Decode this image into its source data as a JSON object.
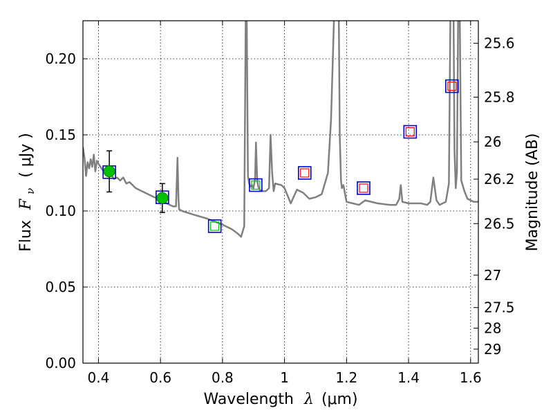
{
  "chart_data": {
    "type": "line",
    "xlabel_main": "Wavelength",
    "xlabel_symbol": "λ",
    "xlabel_unit": "(μm)",
    "ylabel_main": "Flux",
    "ylabel_symbol": "F",
    "ylabel_sub": "ν",
    "ylabel_unit": "( μJy )",
    "y2label": "Magnitude (AB)",
    "xlim": [
      0.35,
      1.625
    ],
    "ylim": [
      0.0,
      0.225
    ],
    "xticks": [
      0.4,
      0.6,
      0.8,
      1.0,
      1.2,
      1.4,
      1.6
    ],
    "xtick_labels": [
      "0.4",
      "0.6",
      "0.8",
      "1",
      "1.2",
      "1.4",
      "1.6"
    ],
    "yticks": [
      0.0,
      0.05,
      0.1,
      0.15,
      0.2
    ],
    "ytick_labels": [
      "0.00",
      "0.05",
      "0.10",
      "0.15",
      "0.20"
    ],
    "y2ticks": [
      {
        "label": "25.6",
        "flux": 0.2102
      },
      {
        "label": "25.8",
        "flux": 0.1748
      },
      {
        "label": "26",
        "flux": 0.1454
      },
      {
        "label": "26.2",
        "flux": 0.1209
      },
      {
        "label": "26.5",
        "flux": 0.0917
      },
      {
        "label": "27",
        "flux": 0.0578
      },
      {
        "label": "27.5",
        "flux": 0.0365
      },
      {
        "label": "28",
        "flux": 0.023
      },
      {
        "label": "29",
        "flux": 0.0092
      }
    ],
    "grid": true,
    "series": [
      {
        "color": "#808080",
        "x": [
          0.35,
          0.355,
          0.36,
          0.365,
          0.37,
          0.375,
          0.38,
          0.385,
          0.39,
          0.395,
          0.4,
          0.41,
          0.42,
          0.43,
          0.44,
          0.45,
          0.46,
          0.47,
          0.48,
          0.49,
          0.5,
          0.52,
          0.54,
          0.56,
          0.58,
          0.6,
          0.62,
          0.64,
          0.65,
          0.655,
          0.658,
          0.66,
          0.67,
          0.7,
          0.75,
          0.8,
          0.83,
          0.85,
          0.86,
          0.87,
          0.875,
          0.878,
          0.882,
          0.886,
          0.89,
          0.895,
          0.9,
          0.905,
          0.908,
          0.912,
          0.915,
          0.92,
          0.93,
          0.94,
          0.95,
          0.955,
          0.96,
          0.965,
          0.97,
          0.99,
          1.0,
          1.01,
          1.02,
          1.04,
          1.06,
          1.08,
          1.1,
          1.12,
          1.14,
          1.15,
          1.16,
          1.17,
          1.175,
          1.178,
          1.182,
          1.185,
          1.19,
          1.2,
          1.22,
          1.24,
          1.26,
          1.3,
          1.34,
          1.36,
          1.37,
          1.375,
          1.38,
          1.4,
          1.42,
          1.44,
          1.46,
          1.47,
          1.48,
          1.49,
          1.5,
          1.51,
          1.52,
          1.53,
          1.535,
          1.54,
          1.545,
          1.548,
          1.552,
          1.556,
          1.56,
          1.565,
          1.57,
          1.58,
          1.59,
          1.6,
          1.61,
          1.625
        ],
        "y": [
          0.142,
          0.135,
          0.123,
          0.132,
          0.128,
          0.134,
          0.129,
          0.137,
          0.126,
          0.133,
          0.131,
          0.128,
          0.125,
          0.123,
          0.124,
          0.121,
          0.122,
          0.12,
          0.122,
          0.118,
          0.119,
          0.115,
          0.113,
          0.111,
          0.109,
          0.108,
          0.105,
          0.103,
          0.103,
          0.135,
          0.108,
          0.101,
          0.1,
          0.098,
          0.095,
          0.091,
          0.088,
          0.085,
          0.083,
          0.09,
          0.23,
          0.23,
          0.123,
          0.118,
          0.116,
          0.117,
          0.115,
          0.121,
          0.145,
          0.12,
          0.116,
          0.114,
          0.113,
          0.113,
          0.115,
          0.15,
          0.125,
          0.113,
          0.118,
          0.117,
          0.115,
          0.11,
          0.105,
          0.114,
          0.112,
          0.108,
          0.109,
          0.111,
          0.125,
          0.16,
          0.23,
          0.23,
          0.23,
          0.15,
          0.12,
          0.115,
          0.117,
          0.106,
          0.105,
          0.104,
          0.107,
          0.105,
          0.104,
          0.104,
          0.108,
          0.117,
          0.106,
          0.105,
          0.105,
          0.105,
          0.104,
          0.106,
          0.122,
          0.107,
          0.104,
          0.105,
          0.106,
          0.118,
          0.23,
          0.23,
          0.23,
          0.14,
          0.115,
          0.125,
          0.23,
          0.23,
          0.12,
          0.113,
          0.108,
          0.107,
          0.106,
          0.106
        ]
      }
    ],
    "measured_points": [
      {
        "x": 0.435,
        "y": 0.126,
        "err": 0.0135,
        "color": "#00c000"
      },
      {
        "x": 0.606,
        "y": 0.1085,
        "err": 0.0095,
        "color": "#00c000"
      }
    ],
    "model_boxes": [
      {
        "x": 0.435,
        "y": 0.1255,
        "edge": "#0000cc"
      },
      {
        "x": 0.606,
        "y": 0.109,
        "edge": "#0000cc"
      },
      {
        "x": 0.775,
        "y": 0.09,
        "edge": "#0000cc"
      },
      {
        "x": 0.907,
        "y": 0.117,
        "edge": "#0000cc"
      },
      {
        "x": 1.065,
        "y": 0.125,
        "edge": "#0000cc"
      },
      {
        "x": 1.255,
        "y": 0.115,
        "edge": "#0000cc"
      },
      {
        "x": 1.405,
        "y": 0.152,
        "edge": "#0000cc"
      },
      {
        "x": 1.54,
        "y": 0.182,
        "edge": "#0000cc"
      }
    ],
    "model_inner": [
      {
        "x": 0.775,
        "y": 0.09,
        "color": "#00c000"
      },
      {
        "x": 0.907,
        "y": 0.117,
        "color": "#00c000"
      },
      {
        "x": 1.065,
        "y": 0.125,
        "color": "#ff0000"
      },
      {
        "x": 1.255,
        "y": 0.115,
        "color": "#ff0000"
      },
      {
        "x": 1.405,
        "y": 0.152,
        "color": "#ff0000"
      },
      {
        "x": 1.54,
        "y": 0.182,
        "color": "#ff0000"
      }
    ]
  }
}
